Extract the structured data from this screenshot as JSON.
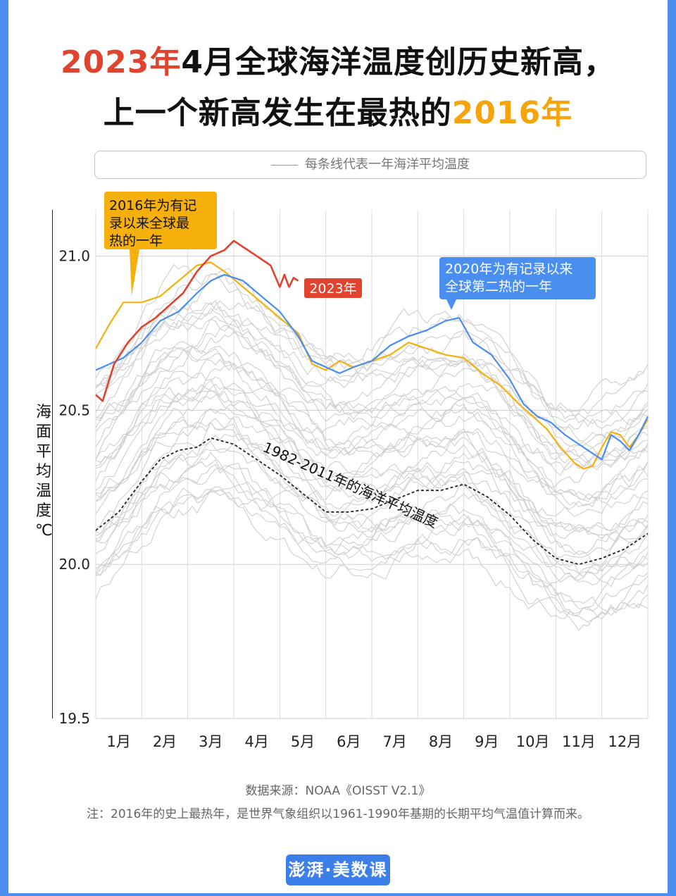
{
  "title": {
    "line1_red": "2023年",
    "line1_rest": "4月全球海洋温度创历史新高，",
    "line2_main": "上一个新高发生在最热的",
    "line2_orange": "2016年"
  },
  "legend_text": "每条线代表一年海洋平均温度",
  "y_label": [
    "海",
    "面",
    "平",
    "均",
    "温",
    "度",
    "℃"
  ],
  "colors": {
    "y2023": "#e0432e",
    "y2016": "#f5b00c",
    "y2020": "#4a8ef0",
    "gray": "#cfcfcf",
    "baseline": "#222222",
    "background": "#4a8ef0"
  },
  "annotations": {
    "y2016": "2016年为有记录以来全球最热的一年",
    "y2016_lines": [
      "2016年为有记",
      "录以来全球最",
      "热的一年"
    ],
    "y2023": "2023年",
    "y2020": "2020年为有记录以来全球第二热的一年",
    "y2020_lines": [
      "2020年为有记录以来",
      "全球第二热的一年"
    ],
    "baseline": "1982-2011年的海洋平均温度"
  },
  "chart_data": {
    "type": "line",
    "x_tick_labels": [
      "1月",
      "2月",
      "3月",
      "4月",
      "5月",
      "6月",
      "7月",
      "8月",
      "9月",
      "10月",
      "11月",
      "12月"
    ],
    "xlim": [
      0,
      12
    ],
    "ylim": [
      19.5,
      21.15
    ],
    "y_ticks": [
      19.5,
      20.0,
      20.5,
      21.0
    ],
    "y_tick_labels": [
      "19.5",
      "20.0",
      "20.5",
      "21.0"
    ],
    "grid": true,
    "series": [
      {
        "name": "2023年",
        "color": "#e0432e",
        "x": [
          0,
          0.15,
          0.4,
          0.7,
          1.0,
          1.3,
          1.6,
          1.9,
          2.2,
          2.5,
          2.8,
          3.0,
          3.2,
          3.5,
          3.8,
          4.0,
          4.1,
          4.2,
          4.3,
          4.4
        ],
        "y": [
          20.55,
          20.53,
          20.65,
          20.72,
          20.77,
          20.8,
          20.84,
          20.88,
          20.95,
          21.0,
          21.02,
          21.05,
          21.03,
          21.0,
          20.97,
          20.9,
          20.94,
          20.9,
          20.93,
          20.92
        ]
      },
      {
        "name": "2016年",
        "color": "#f5b00c",
        "x": [
          0,
          0.3,
          0.6,
          1.0,
          1.4,
          1.8,
          2.2,
          2.5,
          2.8,
          3.2,
          3.6,
          4.0,
          4.4,
          4.7,
          5.0,
          5.3,
          5.6,
          6.0,
          6.4,
          6.8,
          7.2,
          7.6,
          8.0,
          8.4,
          8.8,
          9.2,
          9.5,
          9.8,
          10.1,
          10.4,
          10.6,
          10.8,
          11.0,
          11.2,
          11.4,
          11.6,
          11.8,
          12.0
        ],
        "y": [
          20.7,
          20.78,
          20.85,
          20.85,
          20.87,
          20.92,
          20.97,
          20.98,
          20.95,
          20.9,
          20.85,
          20.8,
          20.75,
          20.65,
          20.63,
          20.66,
          20.64,
          20.66,
          20.68,
          20.72,
          20.7,
          20.68,
          20.67,
          20.62,
          20.58,
          20.52,
          20.48,
          20.44,
          20.38,
          20.33,
          20.31,
          20.32,
          20.38,
          20.43,
          20.42,
          20.38,
          20.42,
          20.47
        ]
      },
      {
        "name": "2020年",
        "color": "#4a8ef0",
        "x": [
          0,
          0.3,
          0.6,
          1.0,
          1.4,
          1.8,
          2.2,
          2.5,
          2.8,
          3.2,
          3.6,
          4.0,
          4.4,
          4.7,
          5.0,
          5.3,
          5.6,
          6.0,
          6.4,
          6.8,
          7.2,
          7.6,
          7.9,
          8.2,
          8.6,
          9.0,
          9.3,
          9.6,
          9.9,
          10.2,
          10.5,
          10.8,
          11.0,
          11.2,
          11.4,
          11.6,
          11.8,
          12.0
        ],
        "y": [
          20.63,
          20.65,
          20.67,
          20.72,
          20.79,
          20.82,
          20.88,
          20.92,
          20.94,
          20.92,
          20.87,
          20.82,
          20.74,
          20.66,
          20.64,
          20.62,
          20.64,
          20.66,
          20.71,
          20.74,
          20.76,
          20.79,
          20.8,
          20.72,
          20.68,
          20.6,
          20.52,
          20.48,
          20.46,
          20.42,
          20.39,
          20.36,
          20.34,
          20.42,
          20.4,
          20.37,
          20.42,
          20.48
        ]
      },
      {
        "name": "1982-2011年的海洋平均温度",
        "color": "#222222",
        "x": [
          0,
          0.5,
          1.0,
          1.4,
          1.8,
          2.2,
          2.5,
          3.0,
          3.5,
          4.0,
          4.5,
          5.0,
          5.5,
          6.0,
          6.5,
          7.0,
          7.5,
          8.0,
          8.5,
          9.0,
          9.5,
          10.0,
          10.5,
          11.0,
          11.5,
          12.0
        ],
        "y": [
          20.11,
          20.17,
          20.27,
          20.34,
          20.37,
          20.38,
          20.41,
          20.39,
          20.34,
          20.29,
          20.23,
          20.17,
          20.17,
          20.18,
          20.21,
          20.24,
          20.24,
          20.26,
          20.22,
          20.16,
          20.08,
          20.02,
          20.0,
          20.02,
          20.05,
          20.1
        ]
      }
    ]
  },
  "source": "数据来源：NOAA《OISST V2.1》",
  "note": "注：2016年的史上最热年，是世界气象组织以1961-1990年基期的长期平均气温值计算而来。",
  "logo_text": "澎湃·美数课"
}
